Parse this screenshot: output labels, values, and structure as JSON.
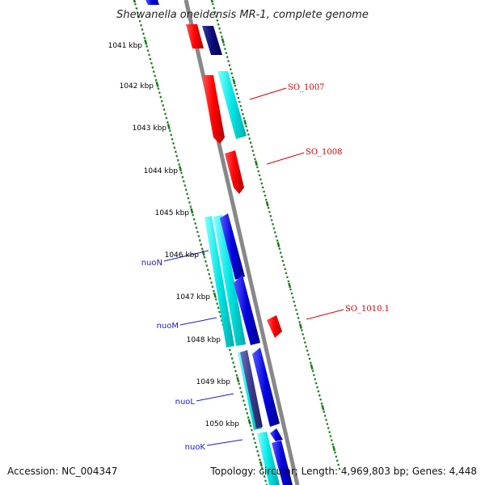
{
  "title": "Shewanella oneidensis MR-1, complete genome",
  "footer": {
    "accession": "Accession: NC_004347",
    "summary": "Topology: circular; Length: 4,969,803 bp; Genes: 4,448"
  },
  "ruler": {
    "labels": [
      "1041 kbp",
      "1042 kbp",
      "1043 kbp",
      "1044 kbp",
      "1045 kbp",
      "1046 kbp",
      "1047 kbp",
      "1048 kbp",
      "1049 kbp",
      "1050 kbp"
    ]
  },
  "gene_labels": {
    "so_1007": "SO_1007",
    "so_1008": "SO_1008",
    "so_1010_1": "SO_1010.1",
    "nuoN": "nuoN",
    "nuoM": "nuoM",
    "nuoL": "nuoL",
    "nuoK": "nuoK"
  },
  "colors": {
    "background": "#ffffff",
    "backbone": "#888888",
    "tick": "#1a7a1a",
    "red_feature": "#ff0000",
    "cyan_feature": "#00e5e5",
    "blue_feature": "#0000dd",
    "navy_feature": "#0a0a7a",
    "slate_feature": "#3a3a8c",
    "red_label": "#d40000",
    "blue_label": "#1a1acc"
  },
  "icons": {
    "forward_gene": "arrow-forward-icon",
    "reverse_gene": "arrow-reverse-icon"
  }
}
